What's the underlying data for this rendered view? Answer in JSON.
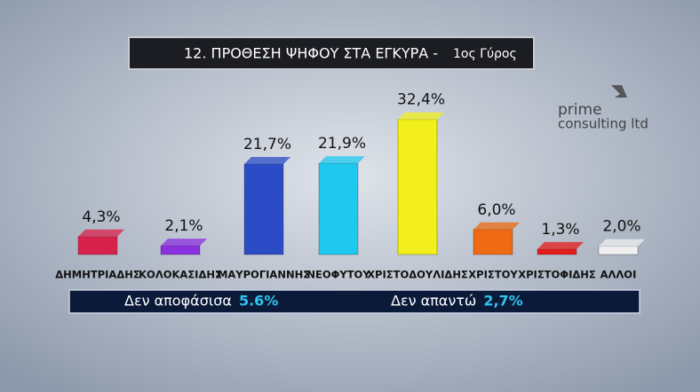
{
  "chart_data": {
    "type": "bar",
    "title": "12. ΠΡΟΘΕΣΗ ΨΗΦΟΥ ΣΤΑ ΕΓΚΥΡΑ -",
    "subtitle": "1ος Γύρος",
    "categories": [
      "ΔΗΜΗΤΡΙΑΔΗΣ",
      "ΚΟΛΟΚΑΣΙΔΗΣ",
      "ΜΑΥΡΟΓΙΑΝΝΗΣ",
      "ΝΕΟΦΥΤΟΥ",
      "ΧΡΙΣΤΟΔΟΥΛΙΔΗΣ",
      "ΧΡΙΣΤΟΥ",
      "ΧΡΙΣΤΟΦΙΔΗΣ",
      "ΑΛΛΟΙ"
    ],
    "values": [
      4.3,
      2.1,
      21.7,
      21.9,
      32.4,
      6.0,
      1.3,
      2.0
    ],
    "value_labels": [
      "4,3%",
      "2,1%",
      "21,7%",
      "21,9%",
      "32,4%",
      "6,0%",
      "1,3%",
      "2,0%"
    ],
    "colors": [
      "#d9224b",
      "#8b2fe0",
      "#2b4cc6",
      "#1fc8ef",
      "#f2ef1c",
      "#ef6a12",
      "#e61c1c",
      "#efefef"
    ],
    "notes": [
      {
        "label": "Δεν αποφάσισα",
        "value_label": "5.6%"
      },
      {
        "label": "Δεν απαντώ",
        "value_label": "2,7%"
      }
    ],
    "logo": {
      "line1": "prime",
      "line2": "consulting ltd"
    }
  }
}
